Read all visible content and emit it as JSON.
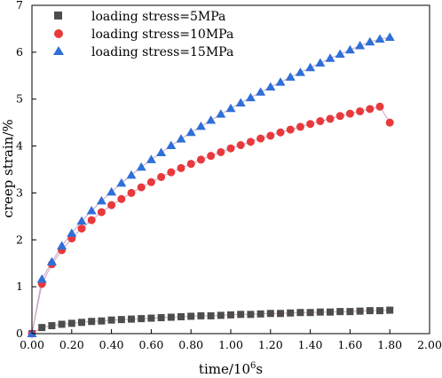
{
  "chart_data": {
    "type": "scatter",
    "xlabel_main": "time/10",
    "xlabel_sup": "6",
    "xlabel_tail": "s",
    "ylabel": "creep strain/%",
    "xlim": [
      0,
      2.0
    ],
    "ylim": [
      0,
      7
    ],
    "xticks": [
      "0.00",
      "0.20",
      "0.40",
      "0.60",
      "0.80",
      "1.00",
      "1.20",
      "1.40",
      "1.60",
      "1.80",
      "2.00"
    ],
    "yticks": [
      "0",
      "1",
      "2",
      "3",
      "4",
      "5",
      "6",
      "7"
    ],
    "grid": false,
    "legend_position": "top-left",
    "series": [
      {
        "name": "loading stress=5MPa",
        "marker": "square",
        "color": "#4d4d4d",
        "x": [
          0.0,
          0.05,
          0.1,
          0.15,
          0.2,
          0.25,
          0.3,
          0.35,
          0.4,
          0.45,
          0.5,
          0.55,
          0.6,
          0.65,
          0.7,
          0.75,
          0.8,
          0.85,
          0.9,
          0.95,
          1.0,
          1.05,
          1.1,
          1.15,
          1.2,
          1.25,
          1.3,
          1.35,
          1.4,
          1.45,
          1.5,
          1.55,
          1.6,
          1.65,
          1.7,
          1.75,
          1.8
        ],
        "y": [
          0.0,
          0.13,
          0.17,
          0.2,
          0.22,
          0.24,
          0.26,
          0.27,
          0.29,
          0.3,
          0.31,
          0.32,
          0.33,
          0.34,
          0.35,
          0.36,
          0.37,
          0.38,
          0.38,
          0.39,
          0.4,
          0.41,
          0.41,
          0.42,
          0.43,
          0.43,
          0.44,
          0.45,
          0.45,
          0.46,
          0.46,
          0.47,
          0.47,
          0.48,
          0.49,
          0.49,
          0.5
        ]
      },
      {
        "name": "loading stress=10MPa",
        "marker": "circle",
        "color": "#e8393c",
        "x": [
          0.0,
          0.05,
          0.1,
          0.15,
          0.2,
          0.25,
          0.3,
          0.35,
          0.4,
          0.45,
          0.5,
          0.55,
          0.6,
          0.65,
          0.7,
          0.75,
          0.8,
          0.85,
          0.9,
          0.95,
          1.0,
          1.05,
          1.1,
          1.15,
          1.2,
          1.25,
          1.3,
          1.35,
          1.4,
          1.45,
          1.5,
          1.55,
          1.6,
          1.65,
          1.7,
          1.75,
          1.8
        ],
        "y": [
          0.0,
          1.06,
          1.48,
          1.78,
          2.03,
          2.24,
          2.42,
          2.59,
          2.74,
          2.87,
          3.0,
          3.12,
          3.23,
          3.34,
          3.44,
          3.53,
          3.62,
          3.71,
          3.79,
          3.87,
          3.95,
          4.02,
          4.09,
          4.16,
          4.22,
          4.29,
          4.35,
          4.41,
          4.47,
          4.53,
          4.58,
          4.64,
          4.69,
          4.74,
          4.79,
          4.84,
          4.5
        ]
      },
      {
        "name": "loading stress=15MPa",
        "marker": "triangle",
        "color": "#2f6fd8",
        "x": [
          0.0,
          0.05,
          0.1,
          0.15,
          0.2,
          0.25,
          0.3,
          0.35,
          0.4,
          0.45,
          0.5,
          0.55,
          0.6,
          0.65,
          0.7,
          0.75,
          0.8,
          0.85,
          0.9,
          0.95,
          1.0,
          1.05,
          1.1,
          1.15,
          1.2,
          1.25,
          1.3,
          1.35,
          1.4,
          1.45,
          1.5,
          1.55,
          1.6,
          1.65,
          1.7,
          1.75,
          1.8
        ],
        "y": [
          0.0,
          1.16,
          1.53,
          1.87,
          2.14,
          2.4,
          2.62,
          2.83,
          3.02,
          3.21,
          3.38,
          3.55,
          3.71,
          3.86,
          4.01,
          4.15,
          4.29,
          4.42,
          4.55,
          4.68,
          4.8,
          4.92,
          5.03,
          5.15,
          5.26,
          5.36,
          5.47,
          5.57,
          5.67,
          5.77,
          5.87,
          5.96,
          6.05,
          6.14,
          6.22,
          6.28,
          6.32
        ]
      }
    ],
    "fit_line_color": "#c9a3c2"
  }
}
